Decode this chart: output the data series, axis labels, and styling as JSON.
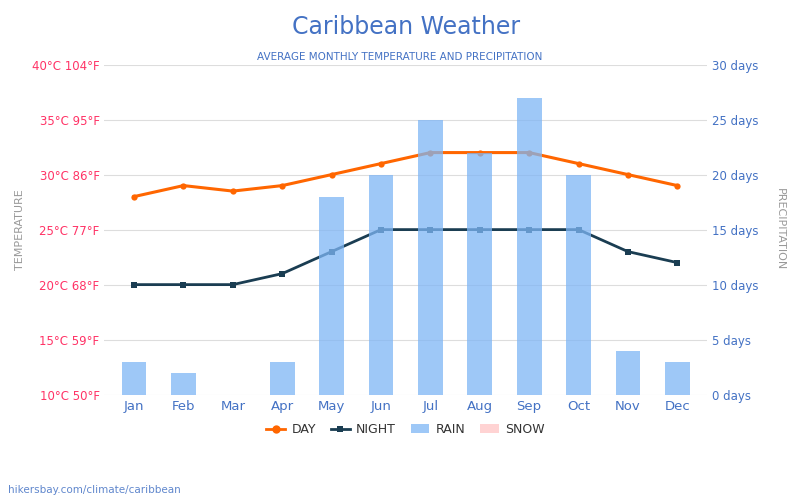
{
  "title": "Caribbean Weather",
  "subtitle": "AVERAGE MONTHLY TEMPERATURE AND PRECIPITATION",
  "months": [
    "Jan",
    "Feb",
    "Mar",
    "Apr",
    "May",
    "Jun",
    "Jul",
    "Aug",
    "Sep",
    "Oct",
    "Nov",
    "Dec"
  ],
  "day_temp": [
    28.0,
    29.0,
    28.5,
    29.0,
    30.0,
    31.0,
    32.0,
    32.0,
    32.0,
    31.0,
    30.0,
    29.0
  ],
  "night_temp": [
    20.0,
    20.0,
    20.0,
    21.0,
    23.0,
    25.0,
    25.0,
    25.0,
    25.0,
    25.0,
    23.0,
    22.0
  ],
  "rain_days": [
    3,
    2,
    0,
    3,
    18,
    20,
    25,
    22,
    27,
    20,
    4,
    3
  ],
  "snow_days": [
    0,
    0,
    0,
    0,
    0,
    0,
    0,
    0,
    0,
    0,
    0,
    0
  ],
  "temp_left_ticks": [
    10,
    15,
    20,
    25,
    30,
    35,
    40
  ],
  "temp_left_labels": [
    "10°C 50°F",
    "15°C 59°F",
    "20°C 68°F",
    "25°C 77°F",
    "30°C 86°F",
    "35°C 95°F",
    "40°C 104°F"
  ],
  "precip_right_ticks": [
    0,
    5,
    10,
    15,
    20,
    25,
    30
  ],
  "precip_right_labels": [
    "0 days",
    "5 days",
    "10 days",
    "15 days",
    "20 days",
    "25 days",
    "30 days"
  ],
  "temp_min": 10,
  "temp_max": 40,
  "precip_min": 0,
  "precip_max": 30,
  "bar_color": "#7EB6F5",
  "day_color": "#FF6600",
  "night_color": "#1A3D52",
  "title_color": "#4472C4",
  "subtitle_color": "#4472C4",
  "left_label_color": "#FF3366",
  "right_label_color": "#4472C4",
  "month_label_color": "#4472C4",
  "left_axis_label": "TEMPERATURE",
  "right_axis_label": "PRECIPITATION",
  "watermark": "hikersbay.com/climate/caribbean",
  "background_color": "#FFFFFF",
  "grid_color": "#DDDDDD"
}
